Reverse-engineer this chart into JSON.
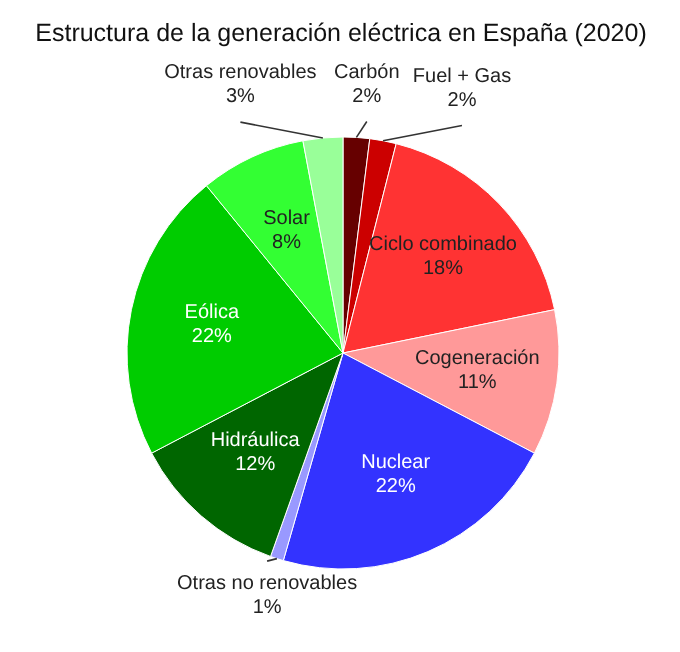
{
  "chart_data": {
    "type": "pie",
    "title": "Estructura de la generación eléctrica en España (2020)",
    "categories": [
      "Carbón",
      "Fuel + Gas",
      "Ciclo combinado",
      "Cogeneración",
      "Nuclear",
      "Otras no renovables",
      "Hidráulica",
      "Eólica",
      "Solar",
      "Otras renovables"
    ],
    "values": [
      2,
      2,
      18,
      11,
      22,
      1,
      12,
      22,
      8,
      3
    ],
    "value_labels": [
      "2%",
      "2%",
      "18%",
      "11%",
      "22%",
      "1%",
      "12%",
      "22%",
      "8%",
      "3%"
    ],
    "colors": [
      "#660000",
      "#cc0000",
      "#ff3333",
      "#ff9999",
      "#3333ff",
      "#9999ff",
      "#006600",
      "#00cc00",
      "#33ff33",
      "#99ff99"
    ]
  }
}
